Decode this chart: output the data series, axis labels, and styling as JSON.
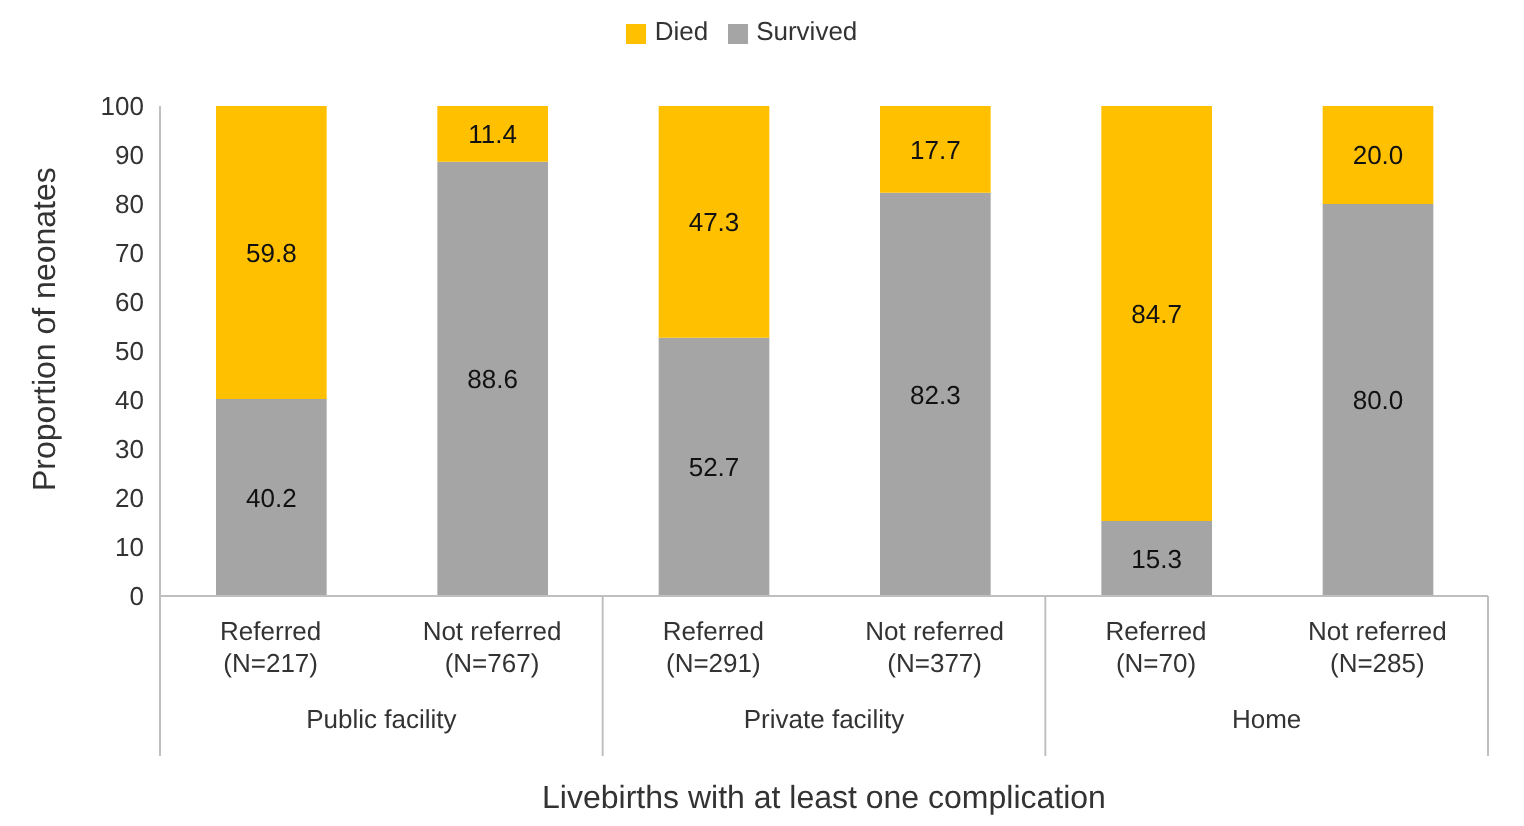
{
  "chart_data": {
    "type": "bar",
    "stacked": true,
    "categories": [
      "Referred (N=217)",
      "Not referred (N=767)",
      "Referred (N=291)",
      "Not referred (N=377)",
      "Referred (N=70)",
      "Not referred (N=285)"
    ],
    "series": [
      {
        "name": "Survived",
        "color": "#a5a5a5",
        "values": [
          40.2,
          88.6,
          52.7,
          82.3,
          15.3,
          80.0
        ],
        "value_labels": [
          "40.2",
          "88.6",
          "52.7",
          "82.3",
          "15.3",
          "80.0"
        ]
      },
      {
        "name": "Died",
        "color": "#ffc000",
        "values": [
          59.8,
          11.4,
          47.3,
          17.7,
          84.7,
          20.0
        ],
        "value_labels": [
          "59.8",
          "11.4",
          "47.3",
          "17.7",
          "84.7",
          "20.0"
        ]
      }
    ],
    "ylim": [
      0,
      100
    ],
    "yticks": [
      0,
      10,
      20,
      30,
      40,
      50,
      60,
      70,
      80,
      90,
      100
    ],
    "legend": "top",
    "ylabel": "Proportion of neonates",
    "xlabel": "Livebirths with at least one complication",
    "annotations": [
      "Public facility",
      "Private facility",
      "Home"
    ]
  }
}
